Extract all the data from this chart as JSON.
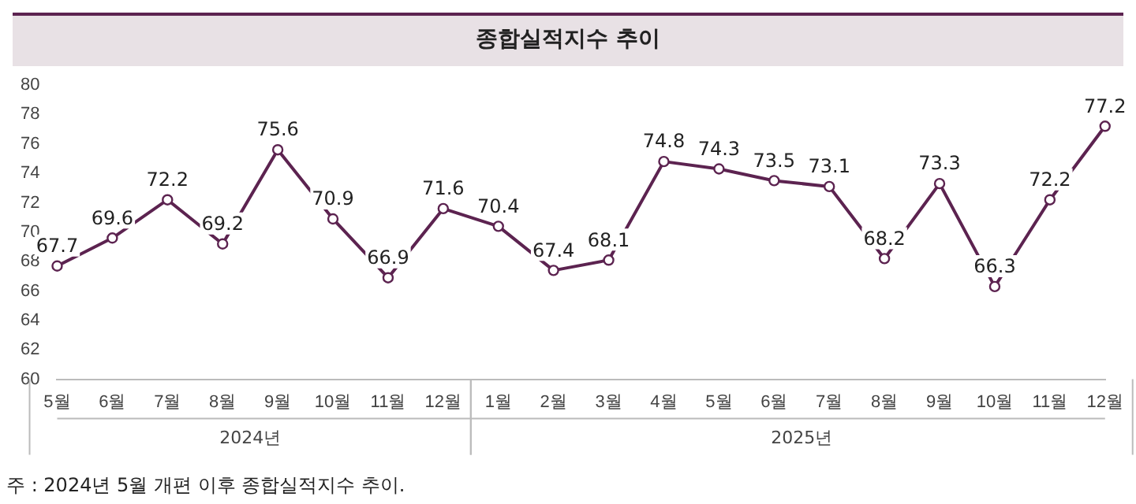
{
  "chart_data": {
    "type": "line",
    "title": "종합실적지수 추이",
    "categories": [
      "5월",
      "6월",
      "7월",
      "8월",
      "9월",
      "10월",
      "11월",
      "12월",
      "1월",
      "2월",
      "3월",
      "4월",
      "5월",
      "6월",
      "7월",
      "8월",
      "9월",
      "10월",
      "11월",
      "12월"
    ],
    "series": [
      {
        "color": "#5c2350",
        "values": [
          67.7,
          69.6,
          72.2,
          69.2,
          75.6,
          70.9,
          66.9,
          71.6,
          70.4,
          67.4,
          68.1,
          74.8,
          74.3,
          73.5,
          73.1,
          68.2,
          73.3,
          66.3,
          72.2,
          77.2
        ]
      }
    ],
    "ylim": [
      60,
      80
    ],
    "yticks": [
      60,
      62,
      64,
      66,
      68,
      70,
      72,
      74,
      76,
      78,
      80
    ],
    "grid": false,
    "legend": false,
    "marker": "circle",
    "line_style": "solid",
    "data_labels": true,
    "annotations": [
      "2024년",
      "2025년",
      "주 : 2024년 5월 개편 이후 종합실적지수 추이."
    ]
  }
}
